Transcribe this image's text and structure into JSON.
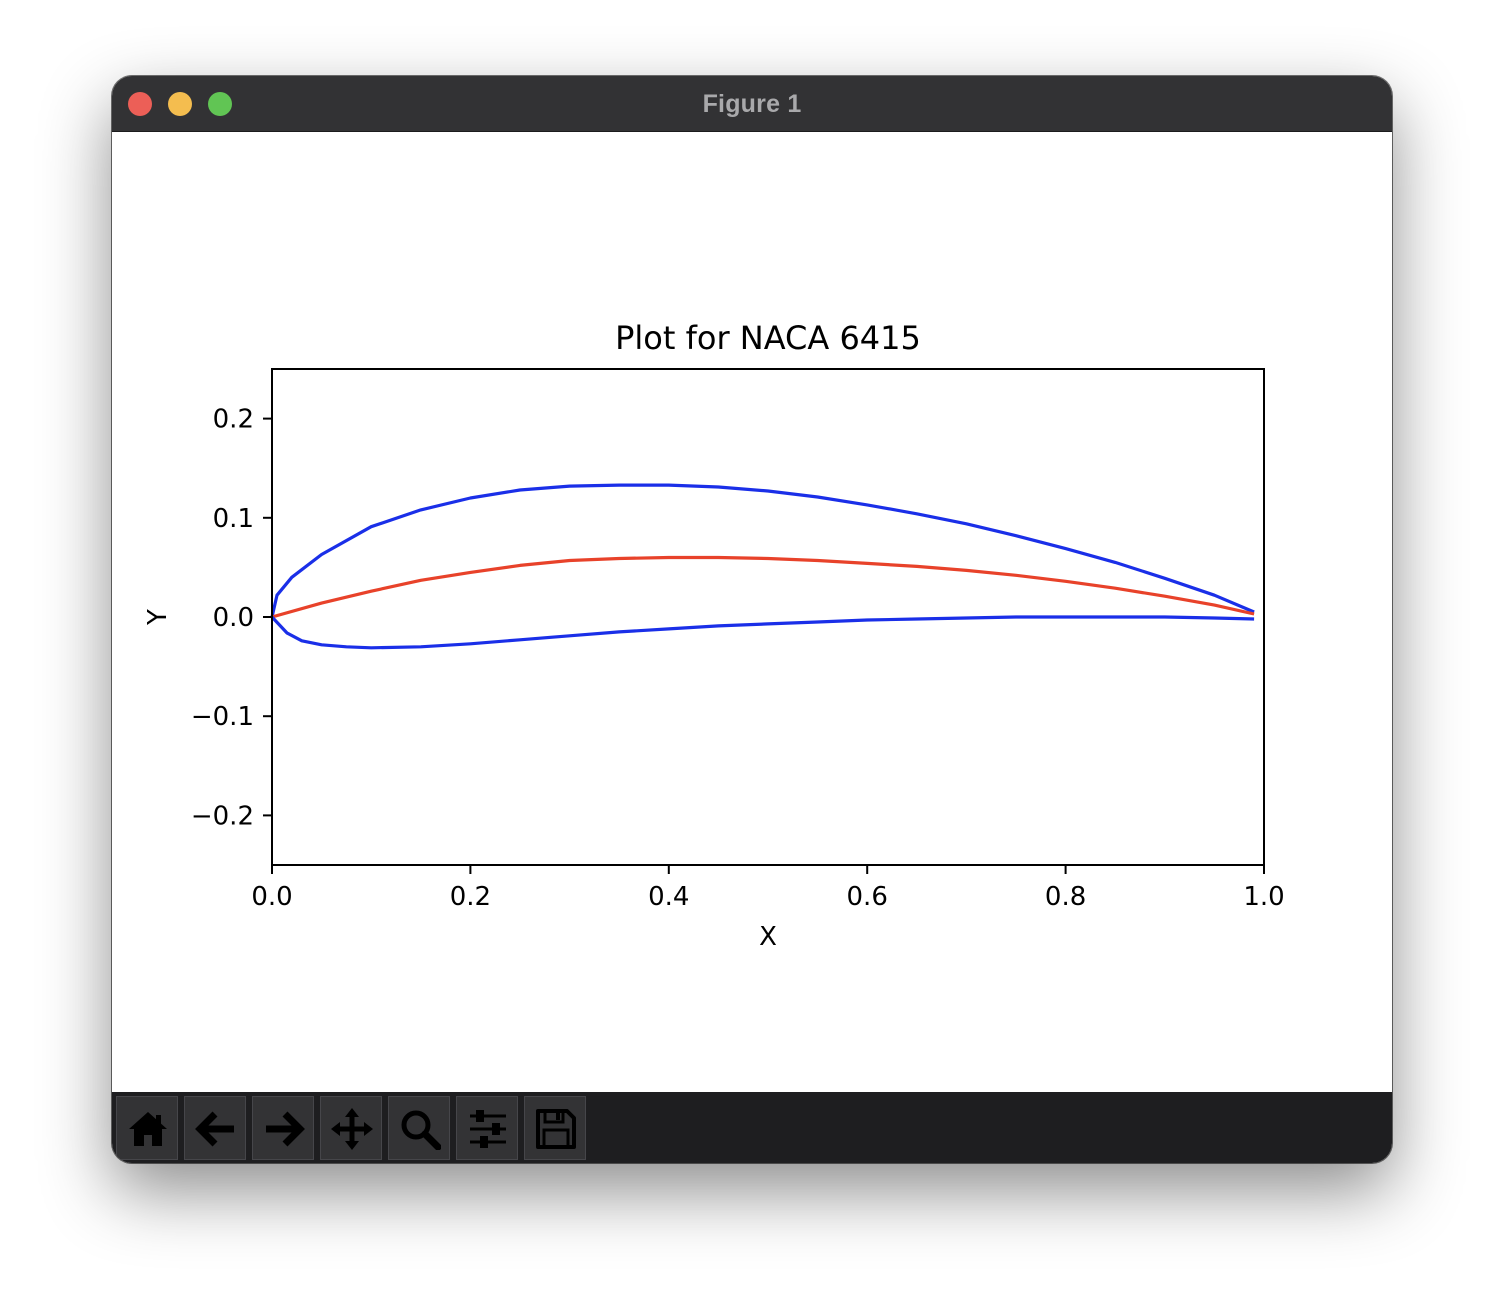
{
  "window": {
    "title": "Figure 1",
    "traffic_lights": {
      "close_color": "#ec5f57",
      "minimize_color": "#f4bd4f",
      "zoom_color": "#61c554"
    }
  },
  "toolbar": {
    "buttons": [
      {
        "name": "home",
        "icon": "home-icon"
      },
      {
        "name": "back",
        "icon": "arrow-left-icon"
      },
      {
        "name": "forward",
        "icon": "arrow-right-icon"
      },
      {
        "name": "pan",
        "icon": "move-arrows-icon"
      },
      {
        "name": "zoom",
        "icon": "magnifier-icon"
      },
      {
        "name": "configure-subplots",
        "icon": "sliders-icon"
      },
      {
        "name": "save",
        "icon": "floppy-disk-icon"
      }
    ]
  },
  "chart_data": {
    "type": "line",
    "title": "Plot for NACA 6415",
    "xlabel": "X",
    "ylabel": "Y",
    "xlim": [
      0.0,
      1.0
    ],
    "ylim": [
      -0.25,
      0.25
    ],
    "xticks": [
      "0.0",
      "0.2",
      "0.4",
      "0.6",
      "0.8",
      "1.0"
    ],
    "yticks": [
      "−0.2",
      "−0.1",
      "0.0",
      "0.1",
      "0.2"
    ],
    "grid": false,
    "series": [
      {
        "color": "#1a2fe8",
        "x": [
          0.0,
          0.005,
          0.02,
          0.05,
          0.1,
          0.15,
          0.2,
          0.25,
          0.3,
          0.35,
          0.4,
          0.45,
          0.5,
          0.55,
          0.6,
          0.65,
          0.7,
          0.75,
          0.8,
          0.85,
          0.9,
          0.95,
          0.99
        ],
        "y": [
          0.0,
          0.022,
          0.04,
          0.063,
          0.091,
          0.108,
          0.12,
          0.128,
          0.132,
          0.133,
          0.133,
          0.131,
          0.127,
          0.121,
          0.113,
          0.104,
          0.094,
          0.082,
          0.069,
          0.055,
          0.039,
          0.022,
          0.005
        ]
      },
      {
        "color": "#e8422a",
        "x": [
          0.0,
          0.05,
          0.1,
          0.15,
          0.2,
          0.25,
          0.3,
          0.35,
          0.4,
          0.45,
          0.5,
          0.55,
          0.6,
          0.65,
          0.7,
          0.75,
          0.8,
          0.85,
          0.9,
          0.95,
          0.99
        ],
        "y": [
          0.0,
          0.014,
          0.026,
          0.037,
          0.045,
          0.052,
          0.057,
          0.059,
          0.06,
          0.06,
          0.059,
          0.057,
          0.054,
          0.051,
          0.047,
          0.042,
          0.036,
          0.029,
          0.021,
          0.012,
          0.003
        ]
      },
      {
        "color": "#1a2fe8",
        "x": [
          0.0,
          0.015,
          0.03,
          0.05,
          0.075,
          0.1,
          0.15,
          0.2,
          0.25,
          0.3,
          0.35,
          0.4,
          0.45,
          0.5,
          0.55,
          0.6,
          0.65,
          0.7,
          0.75,
          0.8,
          0.85,
          0.9,
          0.95,
          0.99
        ],
        "y": [
          0.0,
          -0.016,
          -0.024,
          -0.028,
          -0.03,
          -0.031,
          -0.03,
          -0.027,
          -0.023,
          -0.019,
          -0.015,
          -0.012,
          -0.009,
          -0.007,
          -0.005,
          -0.003,
          -0.002,
          -0.001,
          0.0,
          0.0,
          0.0,
          0.0,
          -0.001,
          -0.002
        ]
      }
    ]
  }
}
